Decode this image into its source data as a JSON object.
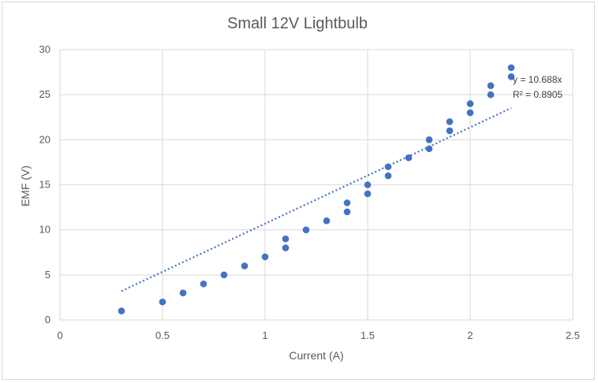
{
  "chart_data": {
    "type": "scatter",
    "title": "Small 12V Lightbulb",
    "xlabel": "Current (A)",
    "ylabel": "EMF (V)",
    "xlim": [
      0,
      2.5
    ],
    "ylim": [
      0,
      30
    ],
    "xticks": [
      "0",
      "0.5",
      "1",
      "1.5",
      "2",
      "2.5"
    ],
    "yticks": [
      "0",
      "5",
      "10",
      "15",
      "20",
      "25",
      "30"
    ],
    "grid": true,
    "marker_color": "#4472c4",
    "series": [
      {
        "x": [
          0.3,
          0.5,
          0.6,
          0.7,
          0.8,
          0.9,
          1.0,
          1.1,
          1.1,
          1.2,
          1.3,
          1.4,
          1.4,
          1.5,
          1.5,
          1.6,
          1.6,
          1.7,
          1.8,
          1.8,
          1.9,
          1.9,
          2.0,
          2.0,
          2.1,
          2.1,
          2.2,
          2.2
        ],
        "y": [
          1,
          2,
          3,
          4,
          5,
          6,
          7,
          8,
          9,
          10,
          11,
          12,
          13,
          14,
          15,
          16,
          17,
          18,
          19,
          20,
          21,
          22,
          23,
          24,
          25,
          26,
          27,
          28
        ]
      }
    ],
    "trendline": {
      "type": "linear",
      "slope": 10.688,
      "x_range": [
        0.3,
        2.2
      ],
      "equation": "y = 10.688x",
      "r_squared": "R² = 0.8905",
      "color": "#4472c4"
    }
  }
}
